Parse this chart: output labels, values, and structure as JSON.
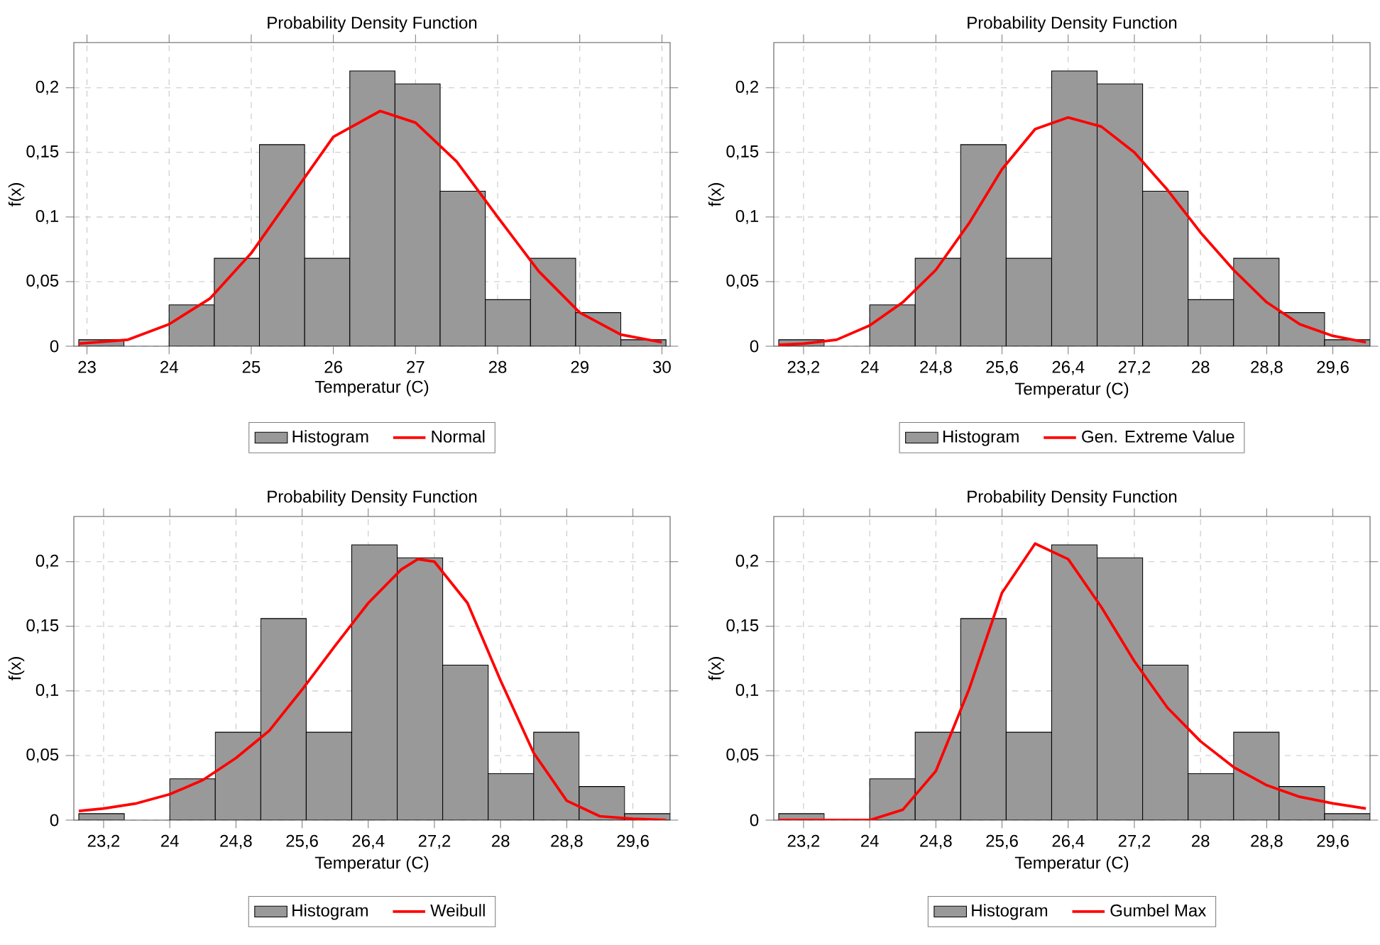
{
  "chart_data": [
    {
      "type": "histogram",
      "title": "Probability Density Function",
      "xlabel": "Temperatur (C)",
      "ylabel": "f(x)",
      "xlim": [
        22.84,
        30.1
      ],
      "ylim": [
        0,
        0.235
      ],
      "xticks": [
        23,
        24,
        25,
        26,
        27,
        28,
        29,
        30
      ],
      "yticks": [
        0,
        {
          "value": 0.05,
          "label": "0,05"
        },
        {
          "value": 0.1,
          "label": "0,1"
        },
        {
          "value": 0.15,
          "label": "0,15"
        },
        {
          "value": 0.2,
          "label": "0,2"
        }
      ],
      "grid": true,
      "legend": "bottom",
      "series": [
        {
          "name": "Histogram",
          "type": "histogram",
          "color": "#999999",
          "bins": [
            22.9,
            23.45,
            24.0,
            24.55,
            25.1,
            25.65,
            26.2,
            26.75,
            27.3,
            27.85,
            28.4,
            28.95,
            29.5,
            30.05
          ],
          "values": [
            0.005,
            0,
            0.032,
            0.068,
            0.156,
            0.068,
            0.213,
            0.203,
            0.12,
            0.036,
            0.068,
            0.026,
            0.005
          ]
        },
        {
          "name": "Normal",
          "type": "line",
          "color": "#ff0000",
          "x": [
            22.9,
            23.5,
            24,
            24.5,
            25,
            25.5,
            26,
            26.57,
            27,
            27.5,
            28,
            28.5,
            29,
            29.5,
            30
          ],
          "values": [
            0.002,
            0.005,
            0.017,
            0.037,
            0.072,
            0.117,
            0.162,
            0.182,
            0.173,
            0.143,
            0.1,
            0.058,
            0.026,
            0.009,
            0.003
          ]
        }
      ]
    },
    {
      "type": "histogram",
      "title": "Probability Density Function",
      "xlabel": "Temperatur (C)",
      "ylabel": "f(x)",
      "xlim": [
        22.84,
        30.05
      ],
      "ylim": [
        0,
        0.235
      ],
      "xticks": [
        {
          "value": 23.2,
          "label": "23,2"
        },
        24,
        {
          "value": 24.8,
          "label": "24,8"
        },
        {
          "value": 25.6,
          "label": "25,6"
        },
        {
          "value": 26.4,
          "label": "26,4"
        },
        {
          "value": 27.2,
          "label": "27,2"
        },
        28,
        {
          "value": 28.8,
          "label": "28,8"
        },
        {
          "value": 29.6,
          "label": "29,6"
        }
      ],
      "yticks": [
        0,
        {
          "value": 0.05,
          "label": "0,05"
        },
        {
          "value": 0.1,
          "label": "0,1"
        },
        {
          "value": 0.15,
          "label": "0,15"
        },
        {
          "value": 0.2,
          "label": "0,2"
        }
      ],
      "grid": true,
      "legend": "bottom",
      "series": [
        {
          "name": "Histogram",
          "type": "histogram",
          "color": "#999999",
          "bins": [
            22.9,
            23.45,
            24.0,
            24.55,
            25.1,
            25.65,
            26.2,
            26.75,
            27.3,
            27.85,
            28.4,
            28.95,
            29.5,
            30.05
          ],
          "values": [
            0.005,
            0,
            0.032,
            0.068,
            0.156,
            0.068,
            0.213,
            0.203,
            0.12,
            0.036,
            0.068,
            0.026,
            0.005
          ]
        },
        {
          "name": "Gen. Extreme Value",
          "type": "line",
          "color": "#ff0000",
          "x": [
            22.9,
            23.2,
            23.6,
            24,
            24.4,
            24.8,
            25.2,
            25.6,
            26,
            26.4,
            26.8,
            27.2,
            27.6,
            28,
            28.4,
            28.8,
            29.2,
            29.6,
            30
          ],
          "values": [
            0.001,
            0.002,
            0.005,
            0.016,
            0.034,
            0.059,
            0.095,
            0.137,
            0.168,
            0.177,
            0.17,
            0.15,
            0.121,
            0.088,
            0.059,
            0.034,
            0.017,
            0.008,
            0.003
          ]
        }
      ]
    },
    {
      "type": "histogram",
      "title": "Probability Density Function",
      "xlabel": "Temperatur (C)",
      "ylabel": "f(x)",
      "xlim": [
        22.84,
        30.05
      ],
      "ylim": [
        0,
        0.235
      ],
      "xticks": [
        {
          "value": 23.2,
          "label": "23,2"
        },
        24,
        {
          "value": 24.8,
          "label": "24,8"
        },
        {
          "value": 25.6,
          "label": "25,6"
        },
        {
          "value": 26.4,
          "label": "26,4"
        },
        {
          "value": 27.2,
          "label": "27,2"
        },
        28,
        {
          "value": 28.8,
          "label": "28,8"
        },
        {
          "value": 29.6,
          "label": "29,6"
        }
      ],
      "yticks": [
        0,
        {
          "value": 0.05,
          "label": "0,05"
        },
        {
          "value": 0.1,
          "label": "0,1"
        },
        {
          "value": 0.15,
          "label": "0,15"
        },
        {
          "value": 0.2,
          "label": "0,2"
        }
      ],
      "grid": true,
      "legend": "bottom",
      "series": [
        {
          "name": "Histogram",
          "type": "histogram",
          "color": "#999999",
          "bins": [
            22.9,
            23.45,
            24.0,
            24.55,
            25.1,
            25.65,
            26.2,
            26.75,
            27.3,
            27.85,
            28.4,
            28.95,
            29.5,
            30.05
          ],
          "values": [
            0.005,
            0,
            0.032,
            0.068,
            0.156,
            0.068,
            0.213,
            0.203,
            0.12,
            0.036,
            0.068,
            0.026,
            0.005
          ]
        },
        {
          "name": "Weibull",
          "type": "line",
          "color": "#ff0000",
          "x": [
            22.9,
            23.2,
            23.6,
            24,
            24.4,
            24.8,
            25.2,
            25.6,
            26,
            26.4,
            26.8,
            27,
            27.2,
            27.6,
            28,
            28.4,
            28.8,
            29.2,
            29.6,
            30
          ],
          "values": [
            0.007,
            0.009,
            0.013,
            0.02,
            0.031,
            0.048,
            0.069,
            0.101,
            0.135,
            0.168,
            0.194,
            0.202,
            0.2,
            0.168,
            0.108,
            0.052,
            0.015,
            0.003,
            0.001,
            0
          ]
        }
      ]
    },
    {
      "type": "histogram",
      "title": "Probability Density Function",
      "xlabel": "Temperatur (C)",
      "ylabel": "f(x)",
      "xlim": [
        22.84,
        30.05
      ],
      "ylim": [
        0,
        0.235
      ],
      "xticks": [
        {
          "value": 23.2,
          "label": "23,2"
        },
        24,
        {
          "value": 24.8,
          "label": "24,8"
        },
        {
          "value": 25.6,
          "label": "25,6"
        },
        {
          "value": 26.4,
          "label": "26,4"
        },
        {
          "value": 27.2,
          "label": "27,2"
        },
        28,
        {
          "value": 28.8,
          "label": "28,8"
        },
        {
          "value": 29.6,
          "label": "29,6"
        }
      ],
      "yticks": [
        0,
        {
          "value": 0.05,
          "label": "0,05"
        },
        {
          "value": 0.1,
          "label": "0,1"
        },
        {
          "value": 0.15,
          "label": "0,15"
        },
        {
          "value": 0.2,
          "label": "0,2"
        }
      ],
      "grid": true,
      "legend": "bottom",
      "series": [
        {
          "name": "Histogram",
          "type": "histogram",
          "color": "#999999",
          "bins": [
            22.9,
            23.45,
            24.0,
            24.55,
            25.1,
            25.65,
            26.2,
            26.75,
            27.3,
            27.85,
            28.4,
            28.95,
            29.5,
            30.05
          ],
          "values": [
            0.005,
            0,
            0.032,
            0.068,
            0.156,
            0.068,
            0.213,
            0.203,
            0.12,
            0.036,
            0.068,
            0.026,
            0.005
          ]
        },
        {
          "name": "Gumbel Max",
          "type": "line",
          "color": "#ff0000",
          "x": [
            22.9,
            24,
            24.4,
            24.8,
            25.2,
            25.6,
            26,
            26.4,
            26.8,
            27.2,
            27.6,
            28,
            28.4,
            28.8,
            29.2,
            29.6,
            30
          ],
          "values": [
            0,
            0,
            0.008,
            0.038,
            0.101,
            0.176,
            0.214,
            0.202,
            0.165,
            0.123,
            0.087,
            0.061,
            0.041,
            0.027,
            0.018,
            0.013,
            0.009
          ]
        }
      ]
    }
  ]
}
